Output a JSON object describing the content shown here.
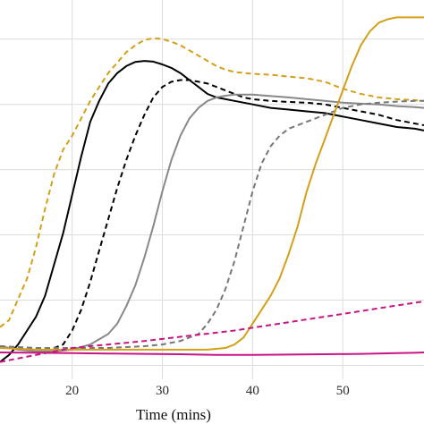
{
  "chart_data": {
    "type": "line",
    "title": "",
    "xlabel": "Time (mins)",
    "ylabel": "",
    "xlim": [
      12,
      59
    ],
    "ylim": [
      0,
      1
    ],
    "x_ticks": [
      20,
      30,
      40,
      50
    ],
    "x_tick_labels": [
      "20",
      "30",
      "40",
      "50"
    ],
    "y_gridlines": [
      0.0,
      0.1875,
      0.375,
      0.5625,
      0.75,
      0.9375
    ],
    "grid": true,
    "legend": "none",
    "series": [
      {
        "color": "#d4a017",
        "dash": "dashed",
        "points": [
          [
            12,
            0.11
          ],
          [
            13,
            0.13
          ],
          [
            14,
            0.19
          ],
          [
            15,
            0.25
          ],
          [
            16,
            0.34
          ],
          [
            17,
            0.45
          ],
          [
            18,
            0.55
          ],
          [
            19,
            0.62
          ],
          [
            20,
            0.66
          ],
          [
            21,
            0.71
          ],
          [
            22,
            0.76
          ],
          [
            23,
            0.8
          ],
          [
            24,
            0.84
          ],
          [
            25,
            0.87
          ],
          [
            26,
            0.9
          ],
          [
            27,
            0.92
          ],
          [
            28,
            0.935
          ],
          [
            29,
            0.94
          ],
          [
            30,
            0.938
          ],
          [
            31,
            0.93
          ],
          [
            32,
            0.92
          ],
          [
            33,
            0.905
          ],
          [
            34,
            0.89
          ],
          [
            35,
            0.875
          ],
          [
            36,
            0.86
          ],
          [
            37,
            0.85
          ],
          [
            38,
            0.843
          ],
          [
            40,
            0.838
          ],
          [
            42,
            0.835
          ],
          [
            44,
            0.83
          ],
          [
            46,
            0.825
          ],
          [
            48,
            0.815
          ],
          [
            50,
            0.795
          ],
          [
            52,
            0.78
          ],
          [
            54,
            0.77
          ],
          [
            56,
            0.765
          ],
          [
            58,
            0.762
          ],
          [
            59,
            0.76
          ]
        ]
      },
      {
        "color": "#000000",
        "dash": "solid",
        "points": [
          [
            12,
            0.01
          ],
          [
            13,
            0.03
          ],
          [
            14,
            0.06
          ],
          [
            15,
            0.1
          ],
          [
            16,
            0.14
          ],
          [
            17,
            0.2
          ],
          [
            18,
            0.29
          ],
          [
            19,
            0.38
          ],
          [
            20,
            0.49
          ],
          [
            21,
            0.6
          ],
          [
            22,
            0.7
          ],
          [
            23,
            0.76
          ],
          [
            24,
            0.81
          ],
          [
            25,
            0.84
          ],
          [
            26,
            0.86
          ],
          [
            27,
            0.872
          ],
          [
            28,
            0.875
          ],
          [
            29,
            0.873
          ],
          [
            30,
            0.865
          ],
          [
            31,
            0.855
          ],
          [
            32,
            0.84
          ],
          [
            33,
            0.82
          ],
          [
            34,
            0.8
          ],
          [
            35,
            0.78
          ],
          [
            36,
            0.77
          ],
          [
            38,
            0.76
          ],
          [
            40,
            0.75
          ],
          [
            42,
            0.74
          ],
          [
            44,
            0.735
          ],
          [
            46,
            0.73
          ],
          [
            48,
            0.725
          ],
          [
            50,
            0.715
          ],
          [
            52,
            0.705
          ],
          [
            54,
            0.695
          ],
          [
            56,
            0.685
          ],
          [
            58,
            0.68
          ],
          [
            59,
            0.675
          ]
        ]
      },
      {
        "color": "#000000",
        "dash": "dashed",
        "points": [
          [
            12,
            0.055
          ],
          [
            14,
            0.05
          ],
          [
            16,
            0.048
          ],
          [
            18,
            0.05
          ],
          [
            19,
            0.06
          ],
          [
            20,
            0.1
          ],
          [
            21,
            0.16
          ],
          [
            22,
            0.24
          ],
          [
            23,
            0.33
          ],
          [
            24,
            0.42
          ],
          [
            25,
            0.51
          ],
          [
            26,
            0.59
          ],
          [
            27,
            0.66
          ],
          [
            28,
            0.72
          ],
          [
            29,
            0.77
          ],
          [
            30,
            0.8
          ],
          [
            31,
            0.815
          ],
          [
            32,
            0.82
          ],
          [
            33,
            0.82
          ],
          [
            34,
            0.815
          ],
          [
            35,
            0.81
          ],
          [
            36,
            0.8
          ],
          [
            37,
            0.79
          ],
          [
            38,
            0.78
          ],
          [
            39,
            0.77
          ],
          [
            40,
            0.765
          ],
          [
            42,
            0.76
          ],
          [
            44,
            0.757
          ],
          [
            46,
            0.755
          ],
          [
            48,
            0.75
          ],
          [
            50,
            0.74
          ],
          [
            52,
            0.73
          ],
          [
            54,
            0.72
          ],
          [
            56,
            0.705
          ],
          [
            58,
            0.695
          ],
          [
            59,
            0.69
          ]
        ]
      },
      {
        "color": "#888888",
        "dash": "solid",
        "points": [
          [
            12,
            0.055
          ],
          [
            14,
            0.045
          ],
          [
            16,
            0.04
          ],
          [
            18,
            0.04
          ],
          [
            20,
            0.045
          ],
          [
            22,
            0.06
          ],
          [
            24,
            0.09
          ],
          [
            25,
            0.12
          ],
          [
            26,
            0.17
          ],
          [
            27,
            0.23
          ],
          [
            28,
            0.31
          ],
          [
            29,
            0.4
          ],
          [
            30,
            0.5
          ],
          [
            31,
            0.59
          ],
          [
            32,
            0.66
          ],
          [
            33,
            0.71
          ],
          [
            34,
            0.74
          ],
          [
            35,
            0.76
          ],
          [
            36,
            0.77
          ],
          [
            37,
            0.775
          ],
          [
            38,
            0.778
          ],
          [
            40,
            0.778
          ],
          [
            42,
            0.774
          ],
          [
            44,
            0.77
          ],
          [
            46,
            0.765
          ],
          [
            48,
            0.76
          ],
          [
            50,
            0.755
          ],
          [
            52,
            0.752
          ],
          [
            54,
            0.75
          ],
          [
            56,
            0.745
          ],
          [
            58,
            0.742
          ],
          [
            59,
            0.74
          ]
        ]
      },
      {
        "color": "#777777",
        "dash": "dashed",
        "points": [
          [
            12,
            0.055
          ],
          [
            16,
            0.05
          ],
          [
            20,
            0.05
          ],
          [
            24,
            0.05
          ],
          [
            28,
            0.055
          ],
          [
            30,
            0.06
          ],
          [
            32,
            0.07
          ],
          [
            34,
            0.09
          ],
          [
            35,
            0.12
          ],
          [
            36,
            0.16
          ],
          [
            37,
            0.22
          ],
          [
            38,
            0.3
          ],
          [
            39,
            0.4
          ],
          [
            40,
            0.5
          ],
          [
            41,
            0.58
          ],
          [
            42,
            0.63
          ],
          [
            43,
            0.66
          ],
          [
            44,
            0.68
          ],
          [
            45,
            0.69
          ],
          [
            46,
            0.7
          ],
          [
            47,
            0.71
          ],
          [
            48,
            0.72
          ],
          [
            49,
            0.73
          ],
          [
            50,
            0.74
          ],
          [
            52,
            0.75
          ],
          [
            54,
            0.755
          ],
          [
            56,
            0.758
          ],
          [
            58,
            0.76
          ],
          [
            59,
            0.76
          ]
        ]
      },
      {
        "color": "#d4a017",
        "dash": "solid",
        "points": [
          [
            12,
            0.05
          ],
          [
            16,
            0.045
          ],
          [
            20,
            0.045
          ],
          [
            24,
            0.045
          ],
          [
            28,
            0.045
          ],
          [
            32,
            0.045
          ],
          [
            35,
            0.045
          ],
          [
            37,
            0.05
          ],
          [
            38,
            0.06
          ],
          [
            39,
            0.08
          ],
          [
            40,
            0.12
          ],
          [
            41,
            0.16
          ],
          [
            42,
            0.2
          ],
          [
            43,
            0.25
          ],
          [
            44,
            0.32
          ],
          [
            45,
            0.4
          ],
          [
            46,
            0.5
          ],
          [
            47,
            0.58
          ],
          [
            48,
            0.65
          ],
          [
            49,
            0.72
          ],
          [
            50,
            0.79
          ],
          [
            51,
            0.86
          ],
          [
            52,
            0.92
          ],
          [
            53,
            0.96
          ],
          [
            54,
            0.985
          ],
          [
            55,
            0.995
          ],
          [
            56,
            1.0
          ],
          [
            57,
            1.0
          ],
          [
            58,
            1.0
          ],
          [
            59,
            1.0
          ]
        ]
      },
      {
        "color": "#c71585",
        "dash": "dashed",
        "points": [
          [
            12,
            0.01
          ],
          [
            14,
            0.02
          ],
          [
            16,
            0.03
          ],
          [
            18,
            0.04
          ],
          [
            20,
            0.05
          ],
          [
            22,
            0.055
          ],
          [
            24,
            0.06
          ],
          [
            26,
            0.065
          ],
          [
            28,
            0.07
          ],
          [
            30,
            0.076
          ],
          [
            32,
            0.082
          ],
          [
            34,
            0.088
          ],
          [
            36,
            0.094
          ],
          [
            38,
            0.1
          ],
          [
            40,
            0.108
          ],
          [
            42,
            0.116
          ],
          [
            44,
            0.124
          ],
          [
            46,
            0.132
          ],
          [
            48,
            0.14
          ],
          [
            50,
            0.148
          ],
          [
            52,
            0.156
          ],
          [
            54,
            0.164
          ],
          [
            56,
            0.172
          ],
          [
            58,
            0.18
          ],
          [
            59,
            0.184
          ]
        ]
      },
      {
        "color": "#c71585",
        "dash": "solid",
        "points": [
          [
            12,
            0.037
          ],
          [
            16,
            0.036
          ],
          [
            20,
            0.035
          ],
          [
            24,
            0.034
          ],
          [
            28,
            0.033
          ],
          [
            32,
            0.032
          ],
          [
            36,
            0.03
          ],
          [
            40,
            0.03
          ],
          [
            44,
            0.031
          ],
          [
            48,
            0.032
          ],
          [
            52,
            0.033
          ],
          [
            56,
            0.035
          ],
          [
            58,
            0.036
          ],
          [
            59,
            0.037
          ]
        ]
      }
    ]
  }
}
